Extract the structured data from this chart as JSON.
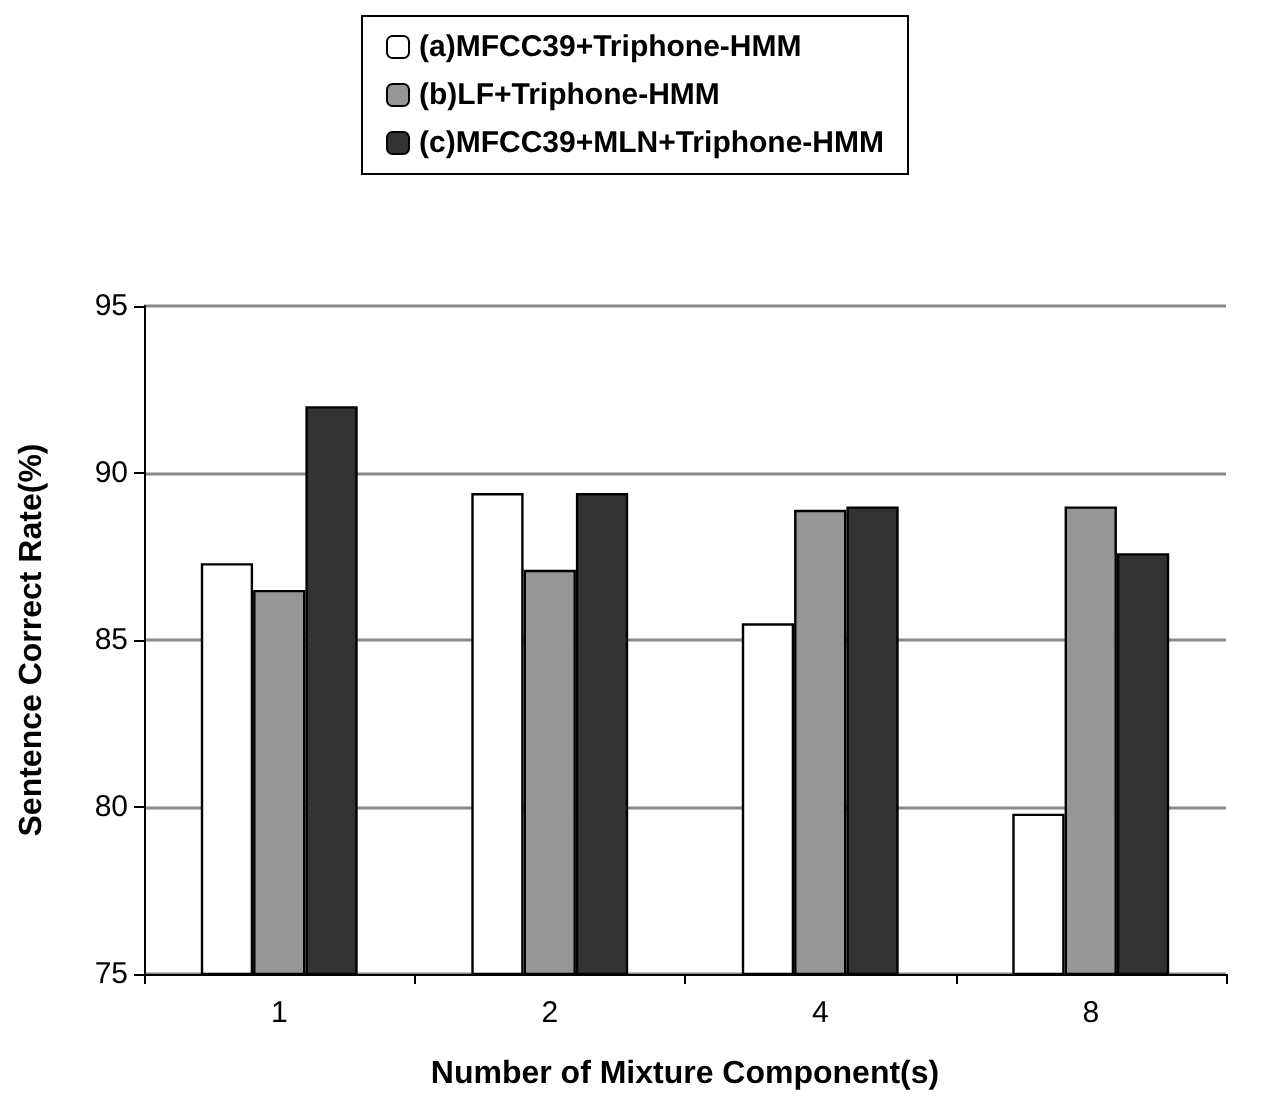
{
  "chart_data": {
    "type": "bar",
    "xlabel": "Number of Mixture Component(s)",
    "ylabel": "Sentence Correct Rate(%)",
    "categories": [
      "1",
      "2",
      "4",
      "8"
    ],
    "series": [
      {
        "name": "(a)MFCC39+Triphone-HMM",
        "color": "#ffffff",
        "values": [
          87.3,
          89.4,
          85.5,
          79.8
        ]
      },
      {
        "name": "(b)LF+Triphone-HMM",
        "color": "#969696",
        "values": [
          86.5,
          87.1,
          88.9,
          89.0
        ]
      },
      {
        "name": "(c)MFCC39+MLN+Triphone-HMM",
        "color": "#333333",
        "values": [
          92.0,
          89.4,
          89.0,
          87.6
        ]
      }
    ],
    "ylim": [
      75,
      95
    ],
    "yticks": [
      75,
      80,
      85,
      90,
      95
    ],
    "grid": "y",
    "legend": "top"
  }
}
